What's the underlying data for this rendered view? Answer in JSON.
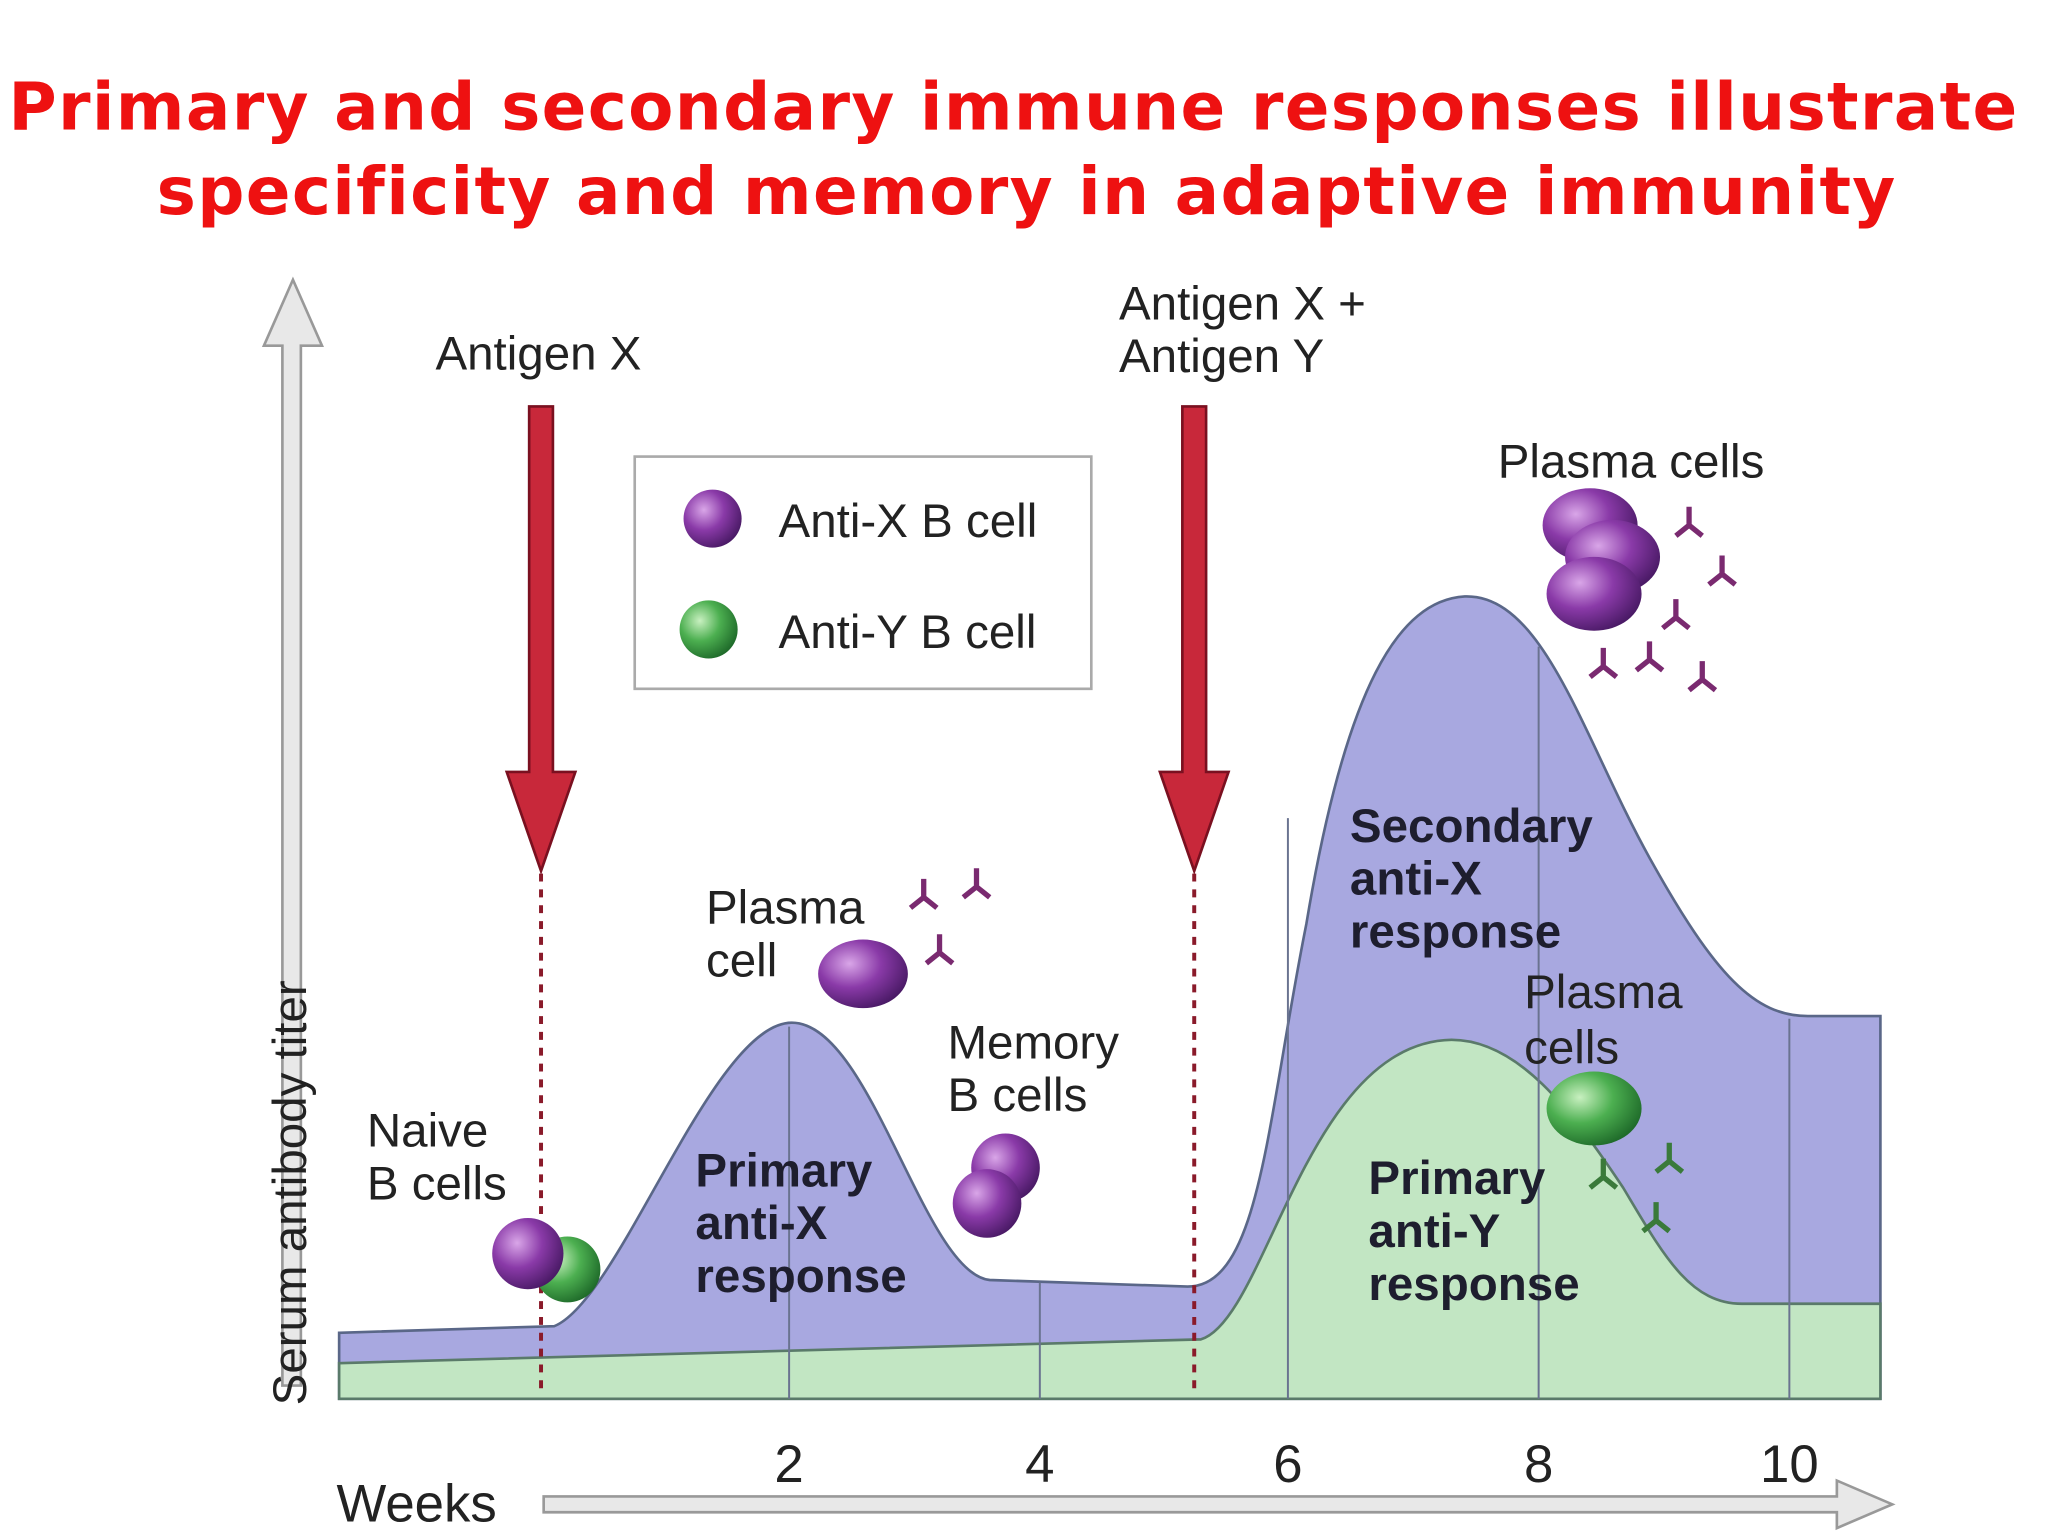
{
  "title": [
    "Primary and secondary immune responses illustrate",
    "specificity and memory in adaptive immunity"
  ],
  "y_axis_label": "Serum antibody titer",
  "x_axis_label": "Weeks",
  "x_ticks": [
    "2",
    "4",
    "6",
    "8",
    "10"
  ],
  "legend": [
    {
      "label": "Anti-X B cell"
    },
    {
      "label": "Anti-Y B cell"
    }
  ],
  "annotations": [
    {
      "lines": [
        "Antigen X"
      ]
    },
    {
      "lines": [
        "Antigen X +",
        "Antigen Y"
      ]
    },
    {
      "lines": [
        "Plasma cells"
      ]
    },
    {
      "lines": [
        "Plasma",
        "cell"
      ]
    },
    {
      "lines": [
        "Memory",
        "B cells"
      ]
    },
    {
      "lines": [
        "Naive",
        "B cells"
      ]
    },
    {
      "lines": [
        "Primary",
        "anti-X",
        "response"
      ]
    },
    {
      "lines": [
        "Secondary",
        "anti-X",
        "response"
      ]
    },
    {
      "lines": [
        "Plasma",
        "cells"
      ]
    },
    {
      "lines": [
        "Primary",
        "anti-Y",
        "response"
      ]
    }
  ]
}
